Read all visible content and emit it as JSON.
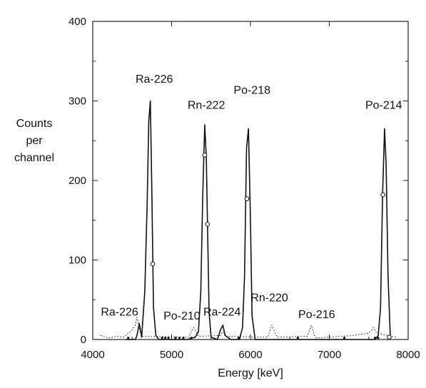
{
  "chart_data": {
    "type": "line",
    "title": "",
    "xlabel": "Energy [keV]",
    "ylabel": [
      "Counts",
      "per",
      "channel"
    ],
    "xlim": [
      4000,
      8000
    ],
    "ylim": [
      0,
      400
    ],
    "x_ticks": [
      4000,
      5000,
      6000,
      7000,
      8000
    ],
    "y_ticks": [
      0,
      100,
      200,
      300,
      400
    ],
    "grid": false,
    "series": [
      {
        "style": "solid",
        "x": [
          4420,
          4540,
          4560,
          4590,
          4620,
          4660,
          4690,
          4710,
          4730,
          4750,
          4770,
          4800,
          4840,
          5200,
          5300,
          5340,
          5370,
          5395,
          5420,
          5440,
          5455,
          5475,
          5500,
          5580,
          5620,
          5650,
          5680,
          5750,
          5860,
          5900,
          5925,
          5950,
          5975,
          6000,
          6020,
          6060,
          7580,
          7620,
          7650,
          7675,
          7700,
          7720,
          7745,
          7775
        ],
        "y": [
          0,
          0,
          5,
          20,
          3,
          60,
          170,
          275,
          300,
          180,
          40,
          5,
          0,
          0,
          3,
          10,
          60,
          180,
          270,
          230,
          145,
          35,
          3,
          0,
          12,
          18,
          5,
          0,
          0,
          15,
          80,
          240,
          265,
          150,
          30,
          0,
          0,
          5,
          40,
          180,
          265,
          220,
          80,
          0
        ]
      },
      {
        "style": "dotted",
        "x": [
          4100,
          4200,
          4300,
          4400,
          4450,
          4500,
          4540,
          4560,
          4580,
          4600,
          4630,
          5220,
          5260,
          5280,
          5300,
          5320,
          5340,
          5620,
          5650,
          5680,
          6220,
          6250,
          6270,
          6290,
          6310,
          6340,
          6720,
          6750,
          6770,
          6790,
          6810,
          6840,
          7300,
          7500,
          7540,
          7560,
          7600,
          7850
        ],
        "y": [
          5,
          2,
          4,
          3,
          8,
          12,
          18,
          28,
          20,
          10,
          4,
          3,
          12,
          15,
          12,
          8,
          4,
          5,
          10,
          4,
          3,
          12,
          18,
          14,
          8,
          3,
          4,
          12,
          18,
          12,
          5,
          2,
          5,
          8,
          12,
          15,
          8,
          3
        ]
      }
    ],
    "markers": {
      "circle_points": [
        {
          "x": 4760,
          "y": 95
        },
        {
          "x": 5420,
          "y": 232
        },
        {
          "x": 5455,
          "y": 145
        },
        {
          "x": 5955,
          "y": 177
        },
        {
          "x": 7680,
          "y": 182
        },
        {
          "x": 7760,
          "y": 3
        }
      ],
      "baseline_points_x": [
        4450,
        4880,
        4920,
        4960,
        5050,
        5100,
        5150,
        5250,
        5850,
        6600,
        7190,
        7580,
        7620
      ]
    },
    "annotations": [
      {
        "text": "Ra-226",
        "x": 4780,
        "y": 323
      },
      {
        "text": "Rn-222",
        "x": 5440,
        "y": 290
      },
      {
        "text": "Po-218",
        "x": 6020,
        "y": 309
      },
      {
        "text": "Po-214",
        "x": 7690,
        "y": 290
      },
      {
        "text": "Ra-226",
        "x": 4340,
        "y": 30
      },
      {
        "text": "Po-210",
        "x": 5130,
        "y": 25
      },
      {
        "text": "Ra-224",
        "x": 5640,
        "y": 30
      },
      {
        "text": "Rn-220",
        "x": 6240,
        "y": 48
      },
      {
        "text": "Po-216",
        "x": 6840,
        "y": 27
      }
    ]
  }
}
